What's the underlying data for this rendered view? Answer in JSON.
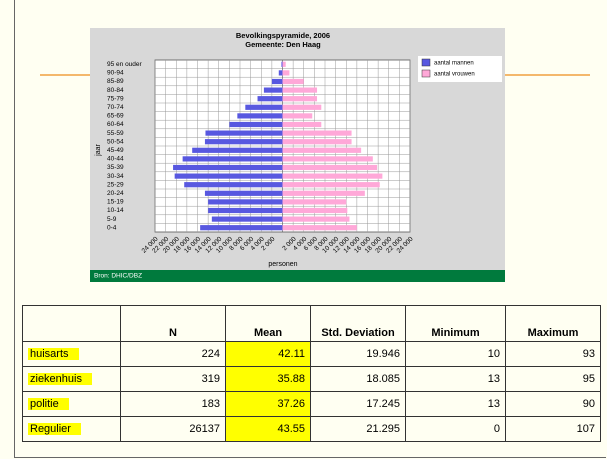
{
  "chart_data": {
    "type": "pyramid",
    "title": "Bevolkingspyramide, 2006",
    "subtitle": "Gemeente: Den Haag",
    "y_label": "jaar",
    "x_label": "personen",
    "categories": [
      "95 en ouder",
      "90-94",
      "85-89",
      "80-84",
      "75-79",
      "70-74",
      "65-69",
      "60-64",
      "55-59",
      "50-54",
      "45-49",
      "40-44",
      "35-39",
      "30-34",
      "25-29",
      "20-24",
      "15-19",
      "10-14",
      "5-9",
      "0-4"
    ],
    "series": [
      {
        "name": "aantal mannen",
        "color": "#5858e0",
        "side": "left",
        "values": [
          200,
          700,
          2000,
          3500,
          4700,
          7000,
          8500,
          10000,
          14500,
          14600,
          17000,
          18800,
          20600,
          20300,
          18500,
          14600,
          14000,
          14000,
          13300,
          15500
        ]
      },
      {
        "name": "aantal vrouwen",
        "color": "#ffa8d8",
        "side": "right",
        "values": [
          600,
          1300,
          4000,
          6500,
          6500,
          7300,
          5600,
          7300,
          13000,
          13000,
          14800,
          17000,
          17800,
          18800,
          18300,
          15500,
          12000,
          12200,
          12600,
          14000
        ]
      }
    ],
    "xlim": [
      0,
      24000
    ],
    "xticks": [
      {
        "value": 2000,
        "label": "2 000"
      },
      {
        "value": 4000,
        "label": "4 000"
      },
      {
        "value": 6000,
        "label": "6 000"
      },
      {
        "value": 8000,
        "label": "8 000"
      },
      {
        "value": 10000,
        "label": "10 000"
      },
      {
        "value": 12000,
        "label": "12 000"
      },
      {
        "value": 14000,
        "label": "14 000"
      },
      {
        "value": 16000,
        "label": "16 000"
      },
      {
        "value": 18000,
        "label": "18 000"
      },
      {
        "value": 20000,
        "label": "20 000"
      },
      {
        "value": 22000,
        "label": "22 000"
      },
      {
        "value": 24000,
        "label": "24 000"
      }
    ],
    "grid": true,
    "legend": "right",
    "source": "Bron: DHIC/DBZ"
  },
  "table": {
    "header": [
      "",
      "N",
      "Mean",
      "Std. Deviation",
      "Minimum",
      "Maximum"
    ],
    "rows": [
      [
        "huisarts",
        224,
        42.11,
        19.946,
        10,
        93
      ],
      [
        "ziekenhuis",
        319,
        35.88,
        18.085,
        13,
        95
      ],
      [
        "politie",
        183,
        37.26,
        17.245,
        13,
        90
      ],
      [
        "Regulier",
        26137,
        43.55,
        21.295,
        0,
        107
      ]
    ]
  }
}
